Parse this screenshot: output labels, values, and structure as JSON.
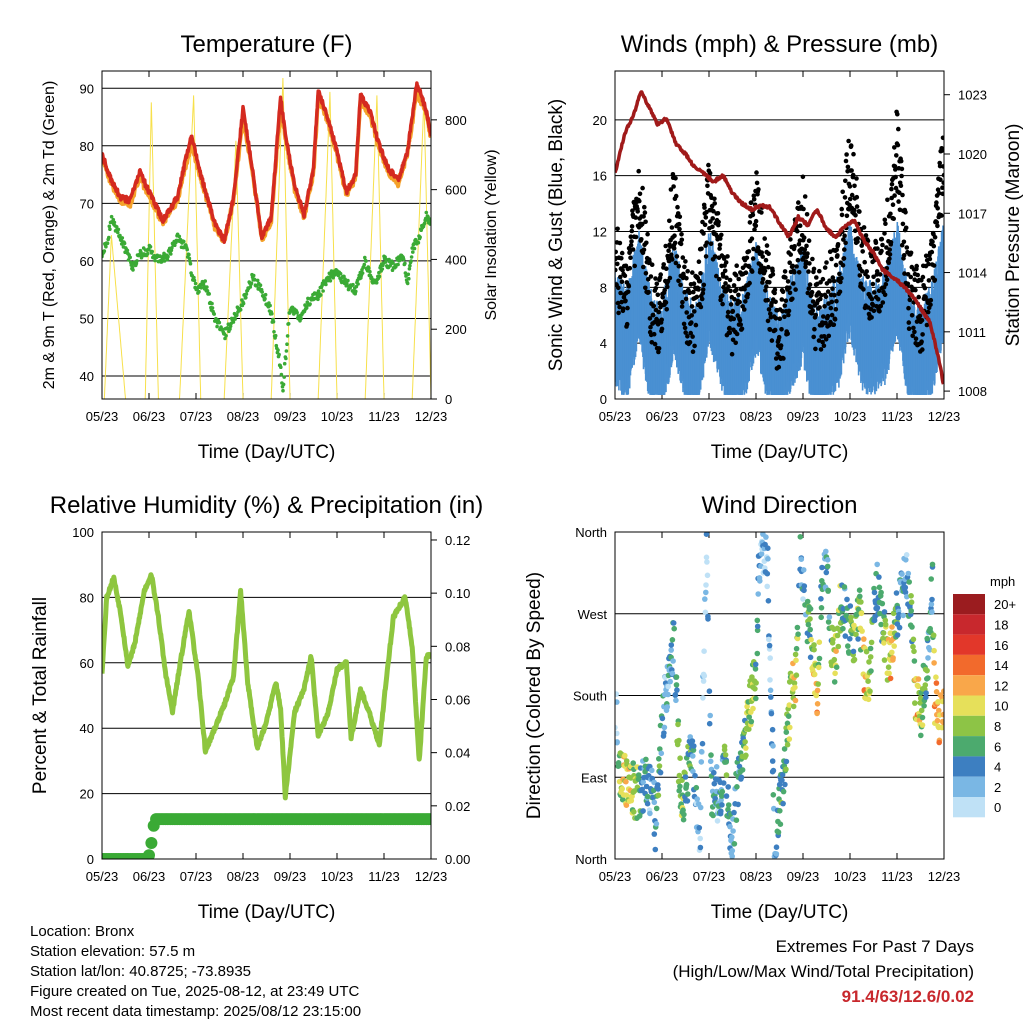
{
  "chart_data": [
    {
      "type": "line",
      "title": "Temperature (F)",
      "xlabel": "Time (Day/UTC)",
      "ylabel": "2m & 9m T (Red, Orange) & 2m Td (Green)",
      "ylabel_right": "Solar Insolation (Yellow)",
      "x_ticks": [
        "05/23",
        "06/23",
        "07/23",
        "08/23",
        "09/23",
        "10/23",
        "11/23",
        "12/23"
      ],
      "ylim": [
        36,
        93
      ],
      "y_ticks": [
        40,
        50,
        60,
        70,
        80,
        90
      ],
      "ylim_right": [
        0,
        940
      ],
      "y_ticks_right": [
        0,
        200,
        400,
        600,
        800
      ],
      "grid": "horizontal",
      "colors": {
        "temp_2m": "#d42a20",
        "temp_9m": "#f4a22a",
        "dewpoint_2m": "#3aaa35",
        "solar": "#f7e04b"
      },
      "series": [
        {
          "name": "2m T",
          "x": [
            0,
            0.2,
            0.4,
            0.6,
            0.8,
            1.0,
            1.3,
            1.6,
            1.9,
            2.1,
            2.4,
            2.6,
            2.8,
            3.0,
            3.2,
            3.4,
            3.6,
            3.8,
            3.9,
            4.1,
            4.3,
            4.5,
            4.6,
            4.8,
            5.0,
            5.2,
            5.4,
            5.5,
            5.7,
            5.9,
            6.1,
            6.3,
            6.5,
            6.7,
            6.9,
            7.0
          ],
          "values": [
            78.5,
            74,
            71,
            70.5,
            75.5,
            72,
            67,
            71,
            82,
            75,
            66.5,
            63.5,
            71,
            86.5,
            76,
            64,
            67.5,
            88.5,
            82,
            73,
            68,
            76,
            89.5,
            85,
            79,
            72,
            75,
            89,
            86,
            80,
            76,
            74,
            79,
            91,
            86,
            82
          ]
        },
        {
          "name": "9m T",
          "x": [
            0,
            0.2,
            0.4,
            0.6,
            0.8,
            1.0,
            1.3,
            1.6,
            1.9,
            2.1,
            2.4,
            2.6,
            2.8,
            3.0,
            3.2,
            3.4,
            3.6,
            3.8,
            3.9,
            4.1,
            4.3,
            4.5,
            4.6,
            4.8,
            5.0,
            5.2,
            5.4,
            5.5,
            5.7,
            5.9,
            6.1,
            6.3,
            6.5,
            6.7,
            6.9,
            7.0
          ],
          "values": [
            78,
            73.5,
            70.5,
            70,
            74.5,
            71.5,
            66.5,
            70.5,
            80.5,
            74.5,
            66,
            63.5,
            70.5,
            85,
            75.5,
            63.8,
            67,
            87,
            81.5,
            72.5,
            67.5,
            75.5,
            88.5,
            84.5,
            78.5,
            71.5,
            74.5,
            88,
            85.5,
            79.5,
            75.5,
            73.5,
            78.5,
            89.5,
            85.5,
            81.5
          ]
        },
        {
          "name": "2m Td",
          "x": [
            0,
            0.1,
            0.2,
            0.35,
            0.5,
            0.65,
            0.8,
            1.0,
            1.2,
            1.4,
            1.6,
            1.8,
            2.0,
            2.2,
            2.4,
            2.6,
            2.8,
            3.0,
            3.2,
            3.4,
            3.6,
            3.75,
            3.85,
            4.0,
            4.2,
            4.4,
            4.6,
            4.8,
            5.0,
            5.2,
            5.4,
            5.6,
            5.8,
            6.0,
            6.2,
            6.4,
            6.5,
            6.6,
            6.75,
            6.9,
            7.0
          ],
          "values": [
            61,
            63,
            67,
            65,
            62,
            59,
            61,
            62,
            60,
            61,
            64,
            62,
            55,
            56,
            50,
            47,
            50,
            53,
            57,
            55,
            51,
            44,
            38,
            52,
            50,
            53,
            54,
            57,
            58,
            56,
            55,
            60,
            56,
            60,
            59,
            61,
            56,
            62,
            64,
            68,
            66
          ]
        },
        {
          "name": "Solar Insolation",
          "axis": "right",
          "x": [
            0.0,
            0.05,
            0.2,
            0.5,
            0.62,
            0.92,
            1.05,
            1.2,
            1.5,
            1.65,
            1.95,
            2.1,
            2.2,
            2.5,
            2.6,
            2.85,
            3.0,
            3.2,
            3.5,
            3.6,
            3.85,
            4.0,
            4.2,
            4.5,
            4.6,
            4.85,
            5.0,
            5.2,
            5.5,
            5.6,
            5.85,
            6.0,
            6.2,
            6.5,
            6.6,
            6.85,
            7.0
          ],
          "values": [
            0,
            0,
            470,
            0,
            0,
            0,
            850,
            0,
            0,
            0,
            870,
            0,
            0,
            0,
            0,
            740,
            0,
            0,
            0,
            0,
            920,
            0,
            0,
            0,
            0,
            880,
            0,
            0,
            0,
            0,
            870,
            0,
            0,
            0,
            0,
            860,
            0
          ]
        }
      ]
    },
    {
      "type": "scatter",
      "title": "Winds (mph) & Pressure (mb)",
      "xlabel": "Time (Day/UTC)",
      "ylabel": "Sonic Wind & Gust (Blue, Black)",
      "ylabel_right": "Station Pressure (Maroon)",
      "x_ticks": [
        "05/23",
        "06/23",
        "07/23",
        "08/23",
        "09/23",
        "10/23",
        "11/23",
        "12/23"
      ],
      "ylim": [
        0,
        23.5
      ],
      "y_ticks": [
        0,
        4,
        8,
        12,
        16,
        20
      ],
      "ylim_right": [
        1007.6,
        1024.2
      ],
      "y_ticks_right": [
        1008,
        1011,
        1014,
        1017,
        1020,
        1023
      ],
      "grid": "horizontal",
      "colors": {
        "wind": "#4a90d2",
        "gust": "#000000",
        "pressure": "#a01a1a"
      },
      "series": [
        {
          "name": "Sonic Wind",
          "x": [
            0.0,
            0.25,
            0.5,
            0.75,
            1.0,
            1.25,
            1.5,
            1.75,
            2.0,
            2.25,
            2.5,
            2.75,
            3.0,
            3.25,
            3.5,
            3.75,
            4.0,
            4.25,
            4.5,
            4.75,
            5.0,
            5.25,
            5.5,
            5.75,
            6.0,
            6.25,
            6.5,
            6.75,
            7.0
          ],
          "values": [
            5.5,
            4,
            8.5,
            4,
            3,
            7.5,
            4,
            3,
            8.5,
            5,
            3,
            4,
            7.5,
            4,
            2,
            5,
            7,
            3,
            3.5,
            5,
            9,
            5,
            4.5,
            5.5,
            9,
            4,
            3,
            4.5,
            9
          ]
        },
        {
          "name": "Gust",
          "x": [
            0.0,
            0.25,
            0.5,
            0.75,
            1.0,
            1.25,
            1.5,
            1.75,
            2.0,
            2.25,
            2.5,
            2.75,
            3.0,
            3.25,
            3.5,
            3.75,
            4.0,
            4.25,
            4.5,
            4.75,
            5.0,
            5.25,
            5.5,
            5.75,
            6.0,
            6.25,
            6.5,
            6.75,
            7.0
          ],
          "values": [
            10,
            7,
            15,
            7,
            6,
            14,
            7,
            6,
            15,
            9,
            6,
            8,
            14,
            8,
            4,
            9,
            13,
            6,
            7,
            9,
            17,
            10,
            8,
            10,
            18,
            8,
            6,
            9,
            18
          ]
        },
        {
          "name": "Station Pressure",
          "axis": "right",
          "x": [
            0,
            0.2,
            0.4,
            0.55,
            0.7,
            0.9,
            1.1,
            1.3,
            1.5,
            1.7,
            1.9,
            2.1,
            2.3,
            2.5,
            2.7,
            2.9,
            3.1,
            3.3,
            3.5,
            3.7,
            3.9,
            4.1,
            4.3,
            4.5,
            4.7,
            4.9,
            5.1,
            5.3,
            5.5,
            5.7,
            5.9,
            6.1,
            6.3,
            6.5,
            6.7,
            6.9,
            7.0
          ],
          "values": [
            1019,
            1021,
            1022,
            1023.2,
            1022.5,
            1021.5,
            1021.8,
            1020.5,
            1020,
            1019.3,
            1019,
            1018.6,
            1018.9,
            1018,
            1017.5,
            1017.2,
            1017.4,
            1017.3,
            1016.5,
            1015.8,
            1016.8,
            1016.4,
            1017.2,
            1016.2,
            1015.8,
            1016.4,
            1016.6,
            1015.6,
            1015,
            1014.1,
            1013.8,
            1013.4,
            1012.9,
            1012.2,
            1011.5,
            1009.5,
            1008.2
          ]
        }
      ]
    },
    {
      "type": "line",
      "title": "Relative Humidity (%) & Precipitation (in)",
      "xlabel": "Time (Day/UTC)",
      "ylabel": "Percent & Total Rainfall",
      "x_ticks": [
        "05/23",
        "06/23",
        "07/23",
        "08/23",
        "09/23",
        "10/23",
        "11/23",
        "12/23"
      ],
      "ylim": [
        0,
        100
      ],
      "y_ticks": [
        0,
        20,
        40,
        60,
        80,
        100
      ],
      "ylim_right": [
        0,
        0.123
      ],
      "y_ticks_right": [
        "0.00",
        "0.02",
        "0.04",
        "0.06",
        "0.08",
        "0.10",
        "0.12"
      ],
      "grid": "horizontal",
      "colors": {
        "rh": "#8ec63f",
        "precip": "#3aaa35"
      },
      "series": [
        {
          "name": "Relative Humidity",
          "x": [
            0,
            0.1,
            0.25,
            0.4,
            0.55,
            0.7,
            0.9,
            1.05,
            1.2,
            1.35,
            1.5,
            1.7,
            1.85,
            2.05,
            2.2,
            2.4,
            2.6,
            2.8,
            2.95,
            3.1,
            3.3,
            3.5,
            3.7,
            3.8,
            3.9,
            4.1,
            4.3,
            4.45,
            4.6,
            4.8,
            5.0,
            5.2,
            5.3,
            5.5,
            5.7,
            5.9,
            6.05,
            6.2,
            6.45,
            6.6,
            6.75,
            6.9,
            7.0
          ],
          "values": [
            57,
            80,
            86,
            75,
            59,
            66,
            82,
            87,
            74,
            57,
            45,
            63,
            76,
            55,
            33,
            40,
            47,
            56,
            82,
            54,
            34,
            42,
            54,
            46,
            19,
            45,
            52,
            62,
            38,
            44,
            58,
            60,
            37,
            52,
            44,
            35,
            55,
            74,
            80,
            65,
            30,
            62,
            62
          ]
        },
        {
          "name": "Total Precipitation",
          "axis": "right",
          "x": [
            0,
            0.95,
            1.02,
            1.08,
            1.12,
            1.5,
            3.0,
            5.0,
            7.0
          ],
          "values": [
            0,
            0,
            0.002,
            0.01,
            0.015,
            0.015,
            0.015,
            0.015,
            0.015
          ]
        }
      ]
    },
    {
      "type": "scatter",
      "title": "Wind Direction",
      "xlabel": "Time (Day/UTC)",
      "ylabel": "Direction (Colored By Speed)",
      "x_ticks": [
        "05/23",
        "06/23",
        "07/23",
        "08/23",
        "09/23",
        "10/23",
        "11/23",
        "12/23"
      ],
      "y_tick_labels": [
        "North",
        "East",
        "South",
        "West",
        "North"
      ],
      "ylim": [
        0,
        360
      ],
      "grid": "horizontal",
      "legend": {
        "title": "mph",
        "placement": "right",
        "labels": [
          "20+",
          "18",
          "16",
          "14",
          "12",
          "10",
          "8",
          "6",
          "4",
          "2",
          "0"
        ],
        "colors": [
          "#9b1c1f",
          "#c8282d",
          "#e2372a",
          "#f26a2c",
          "#f9a74a",
          "#e6e05a",
          "#8dc446",
          "#4caa6e",
          "#3d7fc1",
          "#7ab7e4",
          "#bfe1f6"
        ]
      },
      "series": [
        {
          "name": "Direction",
          "x": [
            0.0,
            0.05,
            0.1,
            0.2,
            0.3,
            0.4,
            0.5,
            0.6,
            0.7,
            0.75,
            0.8,
            0.85,
            0.95,
            1.0,
            1.1,
            1.25,
            1.4,
            1.5,
            1.6,
            1.7,
            1.8,
            1.95,
            2.05,
            2.2,
            2.35,
            2.45,
            2.5,
            2.6,
            2.7,
            2.8,
            2.9,
            3.0,
            3.05,
            3.1,
            3.25,
            3.4,
            3.5,
            3.6,
            3.7,
            3.75,
            3.85,
            3.95,
            4.05,
            4.1,
            4.2,
            4.3,
            4.4,
            4.5,
            4.6,
            4.7,
            4.8,
            4.9,
            5.0,
            5.1,
            5.2,
            5.3,
            5.4,
            5.5,
            5.6,
            5.7,
            5.8,
            5.9,
            6.0,
            6.1,
            6.2,
            6.3,
            6.4,
            6.45,
            6.5,
            6.6,
            6.7,
            6.75,
            6.8,
            6.9,
            7.0
          ],
          "values": [
            170,
            150,
            100,
            88,
            80,
            75,
            72,
            80,
            85,
            70,
            100,
            30,
            110,
            140,
            190,
            240,
            60,
            80,
            110,
            95,
            15,
            350,
            80,
            70,
            100,
            30,
            15,
            80,
            110,
            140,
            180,
            200,
            300,
            350,
            320,
            20,
            60,
            100,
            150,
            190,
            200,
            340,
            270,
            260,
            240,
            180,
            300,
            330,
            240,
            220,
            280,
            270,
            250,
            230,
            280,
            210,
            190,
            280,
            300,
            260,
            215,
            230,
            270,
            290,
            310,
            280,
            180,
            170,
            160,
            200,
            240,
            310,
            180,
            150,
            160
          ],
          "speeds": [
            2,
            3,
            8,
            10,
            9,
            8,
            7,
            4,
            3,
            2,
            5,
            4,
            6,
            4,
            3,
            4,
            8,
            6,
            5,
            3,
            2,
            1,
            5,
            3,
            6,
            4,
            2,
            4,
            6,
            8,
            9,
            6,
            3,
            2,
            2,
            3,
            5,
            6,
            7,
            9,
            10,
            3,
            4,
            6,
            8,
            11,
            5,
            3,
            6,
            9,
            8,
            4,
            5,
            8,
            7,
            11,
            9,
            5,
            4,
            6,
            10,
            12,
            6,
            4,
            3,
            5,
            10,
            12,
            9,
            6,
            4,
            3,
            12,
            11,
            10
          ]
        }
      ]
    }
  ],
  "footer": {
    "location": "Location: Bronx",
    "elevation": "Station elevation: 57.5 m",
    "latlon": "Station lat/lon: 40.8725; -73.8935",
    "created": "Figure created on Tue, 2025-08-12, at 23:49 UTC",
    "latest": "Most recent data timestamp: 2025/08/12 23:15:00"
  },
  "extremes": {
    "title": "Extremes For Past 7 Days",
    "subtitle": "(High/Low/Max Wind/Total Precipitation)",
    "values": "91.4/63/12.6/0.02"
  }
}
